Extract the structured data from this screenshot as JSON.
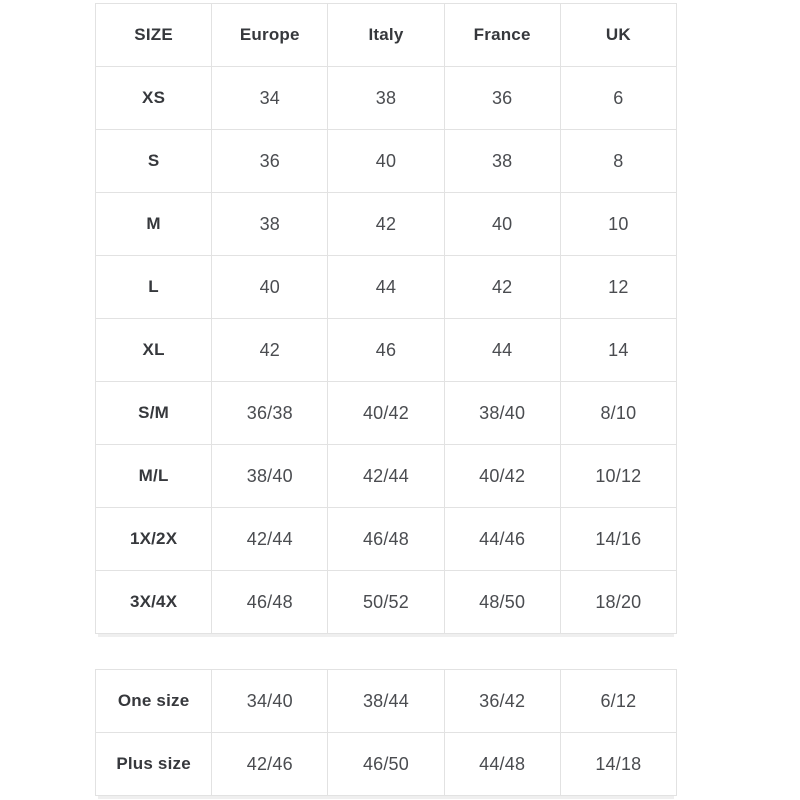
{
  "colors": {
    "background": "#ffffff",
    "text_dark": "#36383c",
    "text_value": "#4a4c50",
    "border": "#e2e2e2",
    "table_shadow": "#efefef"
  },
  "chart_data": [
    {
      "type": "table",
      "columns": [
        "SIZE",
        "Europe",
        "Italy",
        "France",
        "UK"
      ],
      "rows": [
        {
          "label": "XS",
          "values": [
            "34",
            "38",
            "36",
            "6"
          ]
        },
        {
          "label": "S",
          "values": [
            "36",
            "40",
            "38",
            "8"
          ]
        },
        {
          "label": "M",
          "values": [
            "38",
            "42",
            "40",
            "10"
          ]
        },
        {
          "label": "L",
          "values": [
            "40",
            "44",
            "42",
            "12"
          ]
        },
        {
          "label": "XL",
          "values": [
            "42",
            "46",
            "44",
            "14"
          ]
        },
        {
          "label": "S/M",
          "values": [
            "36/38",
            "40/42",
            "38/40",
            "8/10"
          ]
        },
        {
          "label": "M/L",
          "values": [
            "38/40",
            "42/44",
            "40/42",
            "10/12"
          ]
        },
        {
          "label": "1X/2X",
          "values": [
            "42/44",
            "46/48",
            "44/46",
            "14/16"
          ]
        },
        {
          "label": "3X/4X",
          "values": [
            "46/48",
            "50/52",
            "48/50",
            "18/20"
          ]
        }
      ]
    },
    {
      "type": "table",
      "columns": [],
      "rows": [
        {
          "label": "One size",
          "values": [
            "34/40",
            "38/44",
            "36/42",
            "6/12"
          ]
        },
        {
          "label": "Plus size",
          "values": [
            "42/46",
            "46/50",
            "44/48",
            "14/18"
          ]
        }
      ]
    }
  ]
}
